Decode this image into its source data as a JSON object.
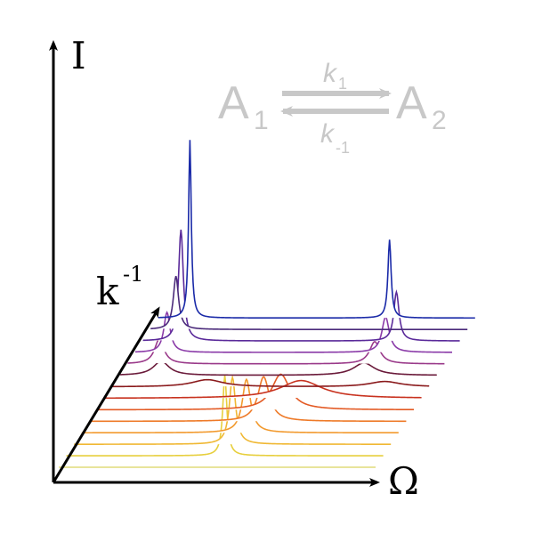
{
  "axes": {
    "y_label": "I",
    "x_label": "Ω",
    "depth_label": "k",
    "depth_label_exponent": "-1"
  },
  "equation": {
    "species_left": "A",
    "species_left_sub": "1",
    "species_right": "A",
    "species_right_sub": "2",
    "forward_rate": "k",
    "forward_rate_sub": "1",
    "backward_rate": "k",
    "backward_rate_sub": "-1",
    "color": "#c8c8c8"
  },
  "spectra": [
    {
      "color": "#e0dc7a",
      "peaks": [
        {
          "pos": 0.0,
          "height": 0.0,
          "width": 0.03
        },
        {
          "pos": 0.0,
          "height": 0.0,
          "width": 0.03
        }
      ]
    },
    {
      "color": "#e7cf3e",
      "peaks": [
        {
          "pos": 0.5,
          "height": 90,
          "width": 0.008
        }
      ]
    },
    {
      "color": "#f0b834",
      "peaks": [
        {
          "pos": 0.5,
          "height": 75,
          "width": 0.012
        }
      ]
    },
    {
      "color": "#f29a2e",
      "peaks": [
        {
          "pos": 0.52,
          "height": 60,
          "width": 0.016
        }
      ]
    },
    {
      "color": "#ee7a28",
      "peaks": [
        {
          "pos": 0.55,
          "height": 50,
          "width": 0.022
        }
      ]
    },
    {
      "color": "#e35a24",
      "peaks": [
        {
          "pos": 0.58,
          "height": 40,
          "width": 0.035
        }
      ]
    },
    {
      "color": "#c8321f",
      "peaks": [
        {
          "pos": 0.62,
          "height": 20,
          "width": 0.08
        }
      ]
    },
    {
      "color": "#8a1a1c",
      "peaks": [
        {
          "pos": 0.3,
          "height": 8,
          "width": 0.06
        },
        {
          "pos": 0.86,
          "height": 6,
          "width": 0.06
        }
      ]
    },
    {
      "color": "#6a1a3a",
      "peaks": [
        {
          "pos": 0.13,
          "height": 16,
          "width": 0.03
        },
        {
          "pos": 0.77,
          "height": 14,
          "width": 0.04
        }
      ]
    },
    {
      "color": "#9a3a8a",
      "peaks": [
        {
          "pos": 0.1,
          "height": 28,
          "width": 0.018
        },
        {
          "pos": 0.78,
          "height": 25,
          "width": 0.02
        }
      ]
    },
    {
      "color": "#8a3aa8",
      "peaks": [
        {
          "pos": 0.1,
          "height": 45,
          "width": 0.012
        },
        {
          "pos": 0.79,
          "height": 40,
          "width": 0.014
        }
      ]
    },
    {
      "color": "#5a2a9a",
      "peaks": [
        {
          "pos": 0.12,
          "height": 125,
          "width": 0.009
        },
        {
          "pos": 0.8,
          "height": 55,
          "width": 0.01
        }
      ]
    },
    {
      "color": "#4a2a7a",
      "peaks": [
        {
          "pos": 0.08,
          "height": 60,
          "width": 0.01
        }
      ]
    },
    {
      "color": "#1a2aa8",
      "peaks": [
        {
          "pos": 0.1,
          "height": 200,
          "width": 0.005
        },
        {
          "pos": 0.73,
          "height": 88,
          "width": 0.006
        }
      ]
    }
  ]
}
